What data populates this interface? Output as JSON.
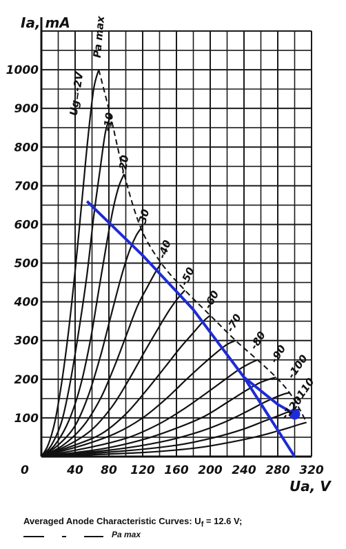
{
  "chart_data": {
    "type": "line",
    "xlabel": "Ua, V",
    "ylabel": "Ia, mA",
    "xlim": [
      0,
      320
    ],
    "ylim": [
      0,
      1100
    ],
    "x_ticks": [
      0,
      40,
      80,
      120,
      160,
      200,
      240,
      280,
      320
    ],
    "x_tick_labels": [
      "0",
      "40",
      "80",
      "120",
      "160",
      "200",
      "240",
      "280",
      "320"
    ],
    "y_ticks": [
      100,
      200,
      300,
      400,
      500,
      600,
      700,
      800,
      900,
      1000
    ],
    "y_tick_labels": [
      "100",
      "200",
      "300",
      "400",
      "500",
      "600",
      "700",
      "800",
      "900",
      "1000"
    ],
    "grid": true,
    "pa_max_label": "Pa max",
    "series": [
      {
        "name": "Ug=-2V",
        "x": [
          0,
          8,
          16,
          24,
          32,
          40,
          48,
          55,
          62,
          68
        ],
        "y": [
          0,
          30,
          90,
          190,
          320,
          480,
          660,
          820,
          950,
          1000
        ]
      },
      {
        "name": "-10",
        "x": [
          0,
          12,
          24,
          34,
          44,
          54,
          62,
          70,
          76,
          82
        ],
        "y": [
          0,
          30,
          90,
          190,
          320,
          470,
          620,
          750,
          840,
          880
        ]
      },
      {
        "name": "-20",
        "x": [
          0,
          16,
          32,
          46,
          58,
          68,
          78,
          86,
          92,
          98
        ],
        "y": [
          0,
          30,
          90,
          180,
          300,
          430,
          560,
          650,
          700,
          730
        ]
      },
      {
        "name": "-30",
        "x": [
          0,
          20,
          40,
          56,
          70,
          82,
          94,
          104,
          112,
          118
        ],
        "y": [
          0,
          30,
          80,
          160,
          260,
          360,
          460,
          530,
          570,
          590
        ]
      },
      {
        "name": "-40",
        "x": [
          0,
          26,
          50,
          70,
          86,
          100,
          114,
          126,
          136,
          142
        ],
        "y": [
          0,
          30,
          80,
          150,
          230,
          310,
          390,
          440,
          480,
          500
        ]
      },
      {
        "name": "-50",
        "x": [
          0,
          32,
          60,
          84,
          104,
          122,
          138,
          152,
          162,
          170
        ],
        "y": [
          0,
          30,
          70,
          130,
          200,
          270,
          330,
          380,
          410,
          430
        ]
      },
      {
        "name": "-60",
        "x": [
          0,
          40,
          72,
          100,
          124,
          146,
          164,
          180,
          192,
          200
        ],
        "y": [
          0,
          30,
          60,
          110,
          170,
          230,
          280,
          320,
          350,
          365
        ]
      },
      {
        "name": "-70",
        "x": [
          0,
          50,
          88,
          120,
          148,
          172,
          192,
          208,
          220,
          230
        ],
        "y": [
          0,
          30,
          60,
          100,
          150,
          200,
          240,
          270,
          290,
          300
        ]
      },
      {
        "name": "-80",
        "x": [
          0,
          60,
          104,
          140,
          170,
          196,
          218,
          234,
          246,
          256
        ],
        "y": [
          0,
          25,
          50,
          85,
          125,
          165,
          200,
          225,
          240,
          250
        ]
      },
      {
        "name": "-90",
        "x": [
          0,
          72,
          122,
          162,
          194,
          220,
          242,
          258,
          270,
          278
        ],
        "y": [
          0,
          20,
          45,
          75,
          105,
          140,
          170,
          190,
          200,
          205
        ]
      },
      {
        "name": "-100",
        "x": [
          0,
          86,
          142,
          184,
          216,
          242,
          262,
          276,
          288,
          294
        ],
        "y": [
          0,
          18,
          38,
          62,
          88,
          115,
          138,
          152,
          162,
          165
        ]
      },
      {
        "name": "-110",
        "x": [
          0,
          100,
          162,
          206,
          238,
          262,
          280,
          292,
          300,
          306
        ],
        "y": [
          0,
          15,
          30,
          50,
          70,
          90,
          105,
          115,
          120,
          122
        ]
      },
      {
        "name": "-120",
        "x": [
          0,
          116,
          182,
          226,
          256,
          278,
          294,
          304,
          310,
          314
        ],
        "y": [
          0,
          10,
          22,
          38,
          52,
          65,
          75,
          82,
          86,
          88
        ]
      }
    ],
    "pa_max_curve": {
      "x": [
        68,
        82,
        98,
        118,
        142,
        170,
        200,
        230,
        256,
        278,
        294,
        306,
        314
      ],
      "y": [
        1000,
        880,
        730,
        590,
        500,
        430,
        365,
        300,
        250,
        205,
        165,
        122,
        88
      ]
    },
    "load_line": {
      "x": [
        54,
        120,
        180,
        240,
        280,
        300
      ],
      "y": [
        660,
        520,
        380,
        205,
        135,
        110
      ]
    },
    "load_line_lower": {
      "x": [
        240,
        300
      ],
      "y": [
        205,
        0
      ]
    },
    "operating_point": {
      "x": [
        300
      ],
      "y": [
        110
      ]
    },
    "caption": "Averaged Anode Characteristic Curves: Uf = 12.6 V;",
    "caption_parts": {
      "lead": "Averaged Anode Characteristic Curves: U",
      "sub": "f",
      "tail": " = 12.6 V;"
    },
    "colors": {
      "curves": "#111111",
      "grid": "#1a1a1a",
      "load_line": "#1f2bd6"
    }
  }
}
